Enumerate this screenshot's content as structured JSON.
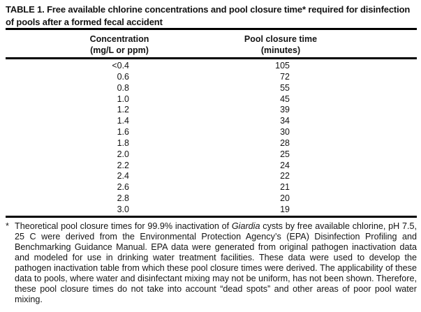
{
  "page": {
    "background": "#ffffff",
    "text_color": "#141414",
    "rule_color": "#000000"
  },
  "table": {
    "title": "TABLE 1. Free available chlorine concentrations and pool closure time* required for disinfection of pools after a formed fecal accident",
    "columns": [
      {
        "title": "Concentration",
        "unit": "(mg/L or ppm)"
      },
      {
        "title": "Pool closure time",
        "unit": "(minutes)"
      }
    ],
    "rows": [
      {
        "concentration": "<0.4",
        "minutes": "105"
      },
      {
        "concentration": "0.6",
        "minutes": "72"
      },
      {
        "concentration": "0.8",
        "minutes": "55"
      },
      {
        "concentration": "1.0",
        "minutes": "45"
      },
      {
        "concentration": "1.2",
        "minutes": "39"
      },
      {
        "concentration": "1.4",
        "minutes": "34"
      },
      {
        "concentration": "1.6",
        "minutes": "30"
      },
      {
        "concentration": "1.8",
        "minutes": "28"
      },
      {
        "concentration": "2.0",
        "minutes": "25"
      },
      {
        "concentration": "2.2",
        "minutes": "24"
      },
      {
        "concentration": "2.4",
        "minutes": "22"
      },
      {
        "concentration": "2.6",
        "minutes": "21"
      },
      {
        "concentration": "2.8",
        "minutes": "20"
      },
      {
        "concentration": "3.0",
        "minutes": "19"
      }
    ]
  },
  "footnote": {
    "marker": "*",
    "text_before_italic": "Theoretical pool closure times for 99.9% inactivation of ",
    "italic_term": "Giardia",
    "text_after_italic": " cysts by free available chlorine, pH 7.5, 25 C were derived from the Environmental Protection Agency’s (EPA) Disinfection Profiling and Benchmarking Guidance Manual. EPA data were generated from original pathogen inactivation data and modeled for use in drinking water treatment facilities. These data were used to develop the pathogen inactivation table from which these pool closure times were derived. The applicability of these data to pools, where water and disinfectant mixing may not be uniform, has not been shown. Therefore, these pool closure times do not take into account “dead spots” and other areas of poor pool water mixing."
  },
  "chart_data": {
    "type": "table",
    "title": "TABLE 1. Free available chlorine concentrations and pool closure time* required for disinfection of pools after a formed fecal accident",
    "xlabel": "Concentration (mg/L or ppm)",
    "ylabel": "Pool closure time (minutes)",
    "categories": [
      "<0.4",
      "0.6",
      "0.8",
      "1.0",
      "1.2",
      "1.4",
      "1.6",
      "1.8",
      "2.0",
      "2.2",
      "2.4",
      "2.6",
      "2.8",
      "3.0"
    ],
    "values": [
      105,
      72,
      55,
      45,
      39,
      34,
      30,
      28,
      25,
      24,
      22,
      21,
      20,
      19
    ]
  }
}
